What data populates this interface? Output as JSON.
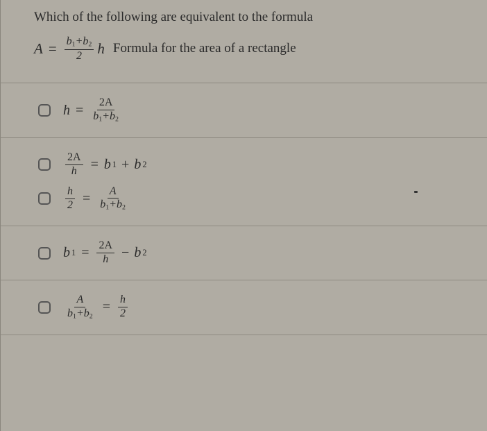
{
  "question": "Which of the following are equivalent to the formula",
  "formula": {
    "lhs": "A",
    "frac_num_a": "b",
    "frac_num_a_sub": "1",
    "plus": "+",
    "frac_num_b": "b",
    "frac_num_b_sub": "2",
    "frac_den": "2",
    "tail": "h",
    "desc": "Formula for the area of a rectangle"
  },
  "options": {
    "o1": {
      "lhs": "h",
      "num": "2A",
      "den_a": "b",
      "den_as": "1",
      "plus": "+",
      "den_b": "b",
      "den_bs": "2"
    },
    "o2": {
      "num": "2A",
      "den": "h",
      "rhs_a": "b",
      "rhs_as": "1",
      "plus": "+",
      "rhs_b": "b",
      "rhs_bs": "2"
    },
    "o3": {
      "lnum": "h",
      "lden": "2",
      "rnum": "A",
      "rden_a": "b",
      "rden_as": "1",
      "plus": "+",
      "rden_b": "b",
      "rden_bs": "2"
    },
    "o4": {
      "lhs_a": "b",
      "lhs_as": "1",
      "num": "2A",
      "den": "h",
      "minus": "−",
      "rhs_b": "b",
      "rhs_bs": "2"
    },
    "o5": {
      "lnum": "A",
      "lden_a": "b",
      "lden_as": "1",
      "plus": "+",
      "lden_b": "b",
      "lden_bs": "2",
      "rnum": "h",
      "rden": "2"
    }
  },
  "style": {
    "bg": "#b0aca3",
    "text": "#2a2a2a",
    "rule": "#8d8980",
    "chk_border": "#555",
    "font": "Georgia",
    "base_fs": 19
  }
}
